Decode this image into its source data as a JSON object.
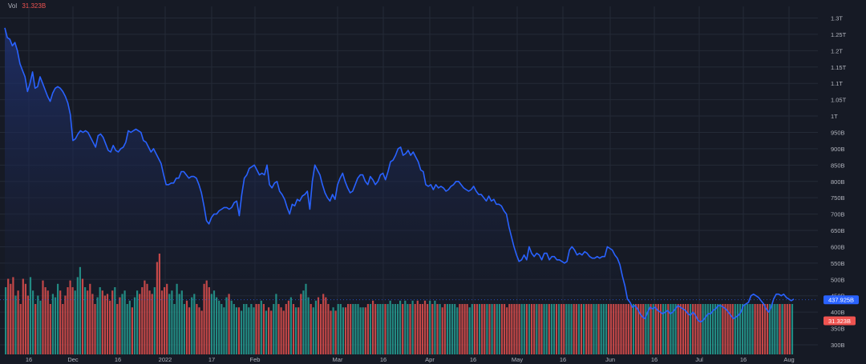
{
  "legend": {
    "vol_label": "Vol",
    "vol_value": "31.323B"
  },
  "colors": {
    "background": "#161a25",
    "grid": "#242a37",
    "line": "#2962ff",
    "area_top": "#1f3170",
    "volume_up": "#26a69a",
    "volume_down": "#ef5350",
    "text": "#b2b5be"
  },
  "chart_data": {
    "type": "area",
    "y_axis": {
      "ticks": [
        {
          "value": 1300,
          "label": "1.3T"
        },
        {
          "value": 1250,
          "label": "1.25T"
        },
        {
          "value": 1200,
          "label": "1.2T"
        },
        {
          "value": 1150,
          "label": "1.15T"
        },
        {
          "value": 1100,
          "label": "1.1T"
        },
        {
          "value": 1050,
          "label": "1.05T"
        },
        {
          "value": 1000,
          "label": "1T"
        },
        {
          "value": 950,
          "label": "950B"
        },
        {
          "value": 900,
          "label": "900B"
        },
        {
          "value": 850,
          "label": "850B"
        },
        {
          "value": 800,
          "label": "800B"
        },
        {
          "value": 750,
          "label": "750B"
        },
        {
          "value": 700,
          "label": "700B"
        },
        {
          "value": 650,
          "label": "650B"
        },
        {
          "value": 600,
          "label": "600B"
        },
        {
          "value": 550,
          "label": "550B"
        },
        {
          "value": 500,
          "label": "500B"
        },
        {
          "value": 450,
          "label": "450B"
        },
        {
          "value": 400,
          "label": "400B"
        },
        {
          "value": 350,
          "label": "350B"
        },
        {
          "value": 300,
          "label": "300B"
        }
      ],
      "unit": "USD, B = billion, T = trillion",
      "scale": "linear",
      "range": [
        282,
        1355
      ]
    },
    "x_axis": {
      "labels": [
        "16",
        "Dec",
        "16",
        "2022",
        "17",
        "Feb",
        "Mar",
        "16",
        "Apr",
        "16",
        "May",
        "16",
        "Jun",
        "16",
        "Jul",
        "16",
        "Aug"
      ],
      "range_dates": [
        "2021-11-10",
        "2022-08-04"
      ]
    },
    "price_badge": {
      "label": "437.925B",
      "value": 437.925
    },
    "volume_badge": {
      "label": "31.323B",
      "value": 31.323
    },
    "series": [
      {
        "type": "line",
        "fill": "area",
        "values_billion_usd": [
          1270,
          1240,
          1235,
          1215,
          1225,
          1200,
          1160,
          1140,
          1120,
          1075,
          1100,
          1135,
          1085,
          1090,
          1120,
          1100,
          1080,
          1060,
          1045,
          1070,
          1085,
          1090,
          1085,
          1075,
          1060,
          1040,
          1005,
          925,
          930,
          945,
          955,
          950,
          955,
          950,
          935,
          920,
          905,
          940,
          945,
          935,
          915,
          895,
          890,
          910,
          895,
          890,
          900,
          905,
          920,
          955,
          950,
          955,
          960,
          955,
          950,
          925,
          920,
          905,
          890,
          900,
          885,
          870,
          855,
          820,
          790,
          790,
          795,
          795,
          810,
          810,
          830,
          830,
          820,
          810,
          815,
          815,
          810,
          790,
          765,
          725,
          680,
          670,
          690,
          700,
          700,
          710,
          715,
          720,
          720,
          715,
          720,
          735,
          740,
          695,
          760,
          810,
          820,
          840,
          845,
          850,
          835,
          820,
          825,
          820,
          850,
          790,
          780,
          795,
          800,
          770,
          760,
          745,
          720,
          700,
          730,
          725,
          745,
          740,
          755,
          760,
          770,
          715,
          800,
          850,
          835,
          820,
          790,
          765,
          750,
          740,
          760,
          745,
          790,
          810,
          825,
          800,
          780,
          765,
          770,
          790,
          810,
          820,
          820,
          800,
          790,
          815,
          805,
          790,
          800,
          820,
          825,
          805,
          830,
          860,
          865,
          880,
          900,
          905,
          880,
          885,
          895,
          880,
          890,
          875,
          860,
          835,
          830,
          790,
          785,
          790,
          775,
          790,
          780,
          785,
          780,
          770,
          775,
          785,
          790,
          800,
          800,
          790,
          780,
          775,
          770,
          775,
          785,
          770,
          760,
          760,
          750,
          740,
          755,
          740,
          745,
          730,
          730,
          725,
          710,
          700,
          660,
          630,
          600,
          575,
          555,
          560,
          575,
          560,
          600,
          580,
          570,
          580,
          575,
          560,
          580,
          580,
          560,
          570,
          570,
          560,
          560,
          555,
          550,
          555,
          590,
          600,
          590,
          575,
          580,
          575,
          585,
          580,
          570,
          565,
          565,
          570,
          565,
          570,
          570,
          600,
          595,
          590,
          575,
          565,
          545,
          510,
          480,
          440,
          430,
          415,
          420,
          410,
          395,
          385,
          380,
          400,
          415,
          410,
          415,
          405,
          400,
          395,
          400,
          405,
          395,
          400,
          410,
          420,
          415,
          410,
          405,
          395,
          390,
          400,
          390,
          375,
          370,
          375,
          385,
          395,
          395,
          405,
          410,
          420,
          420,
          415,
          410,
          400,
          390,
          380,
          385,
          390,
          400,
          420,
          425,
          430,
          450,
          455,
          450,
          445,
          435,
          425,
          410,
          400,
          415,
          440,
          455,
          455,
          450,
          455,
          445,
          440,
          435,
          440
        ]
      },
      {
        "type": "volume",
        "values_billion_usd": [
          40,
          45,
          42,
          46,
          35,
          38,
          30,
          45,
          42,
          35,
          46,
          38,
          30,
          35,
          32,
          44,
          40,
          38,
          30,
          36,
          34,
          42,
          38,
          30,
          35,
          40,
          44,
          40,
          38,
          46,
          52,
          45,
          40,
          38,
          42,
          36,
          30,
          34,
          40,
          38,
          35,
          36,
          32,
          38,
          40,
          30,
          34,
          36,
          38,
          30,
          32,
          28,
          34,
          38,
          36,
          40,
          44,
          42,
          38,
          36,
          40,
          55,
          60,
          38,
          40,
          42,
          36,
          38,
          30,
          42,
          36,
          38,
          30,
          32,
          28,
          34,
          36,
          30,
          28,
          26,
          42,
          44,
          40,
          36,
          38,
          34,
          32,
          30,
          28,
          34,
          36,
          32,
          30,
          28,
          28,
          26,
          30,
          30,
          28,
          30,
          28,
          30,
          30,
          32,
          30,
          26,
          28,
          26,
          30,
          36,
          30,
          28,
          26,
          30,
          32,
          34,
          30,
          28,
          28,
          36,
          38,
          42,
          34,
          30,
          28,
          32,
          34,
          30,
          36,
          34,
          30,
          26,
          28,
          26,
          30,
          30,
          28,
          28,
          30,
          30,
          30,
          30,
          30,
          28,
          28,
          28,
          30,
          30,
          32,
          30,
          30,
          30,
          30,
          30,
          30,
          32,
          30,
          30,
          30,
          32,
          30,
          32,
          30,
          30,
          32,
          30,
          32,
          30,
          30,
          32,
          30,
          32,
          30,
          32,
          30,
          30,
          28,
          30,
          30,
          30,
          30,
          30,
          28,
          30,
          30,
          30,
          30,
          28,
          30,
          30,
          30,
          30,
          30,
          30,
          30,
          30,
          30,
          30,
          30,
          30,
          30,
          30,
          28,
          30,
          30,
          30,
          30,
          30,
          30,
          30,
          30,
          30,
          30,
          30,
          30,
          30,
          30,
          30,
          30,
          30,
          30,
          30,
          30,
          30,
          30,
          30,
          30,
          30,
          30,
          30,
          30,
          30,
          30,
          30,
          30,
          30,
          30,
          30,
          30,
          30,
          30,
          30,
          30,
          30,
          30,
          30,
          30,
          30,
          30,
          30,
          30,
          30,
          30,
          30,
          30,
          30,
          30,
          30,
          30,
          30,
          30,
          30,
          30,
          30,
          30,
          30,
          30,
          30,
          30,
          30,
          30,
          30,
          30,
          30,
          30,
          30,
          30,
          30,
          30,
          30,
          30,
          30,
          30,
          30,
          30,
          30,
          30,
          30,
          30,
          30,
          30,
          30,
          30,
          30,
          30,
          30,
          30,
          30,
          30,
          30,
          30,
          30,
          30,
          30,
          30,
          30,
          30,
          30,
          30,
          30,
          30,
          30,
          30,
          30,
          30,
          30,
          30,
          30
        ]
      }
    ]
  }
}
